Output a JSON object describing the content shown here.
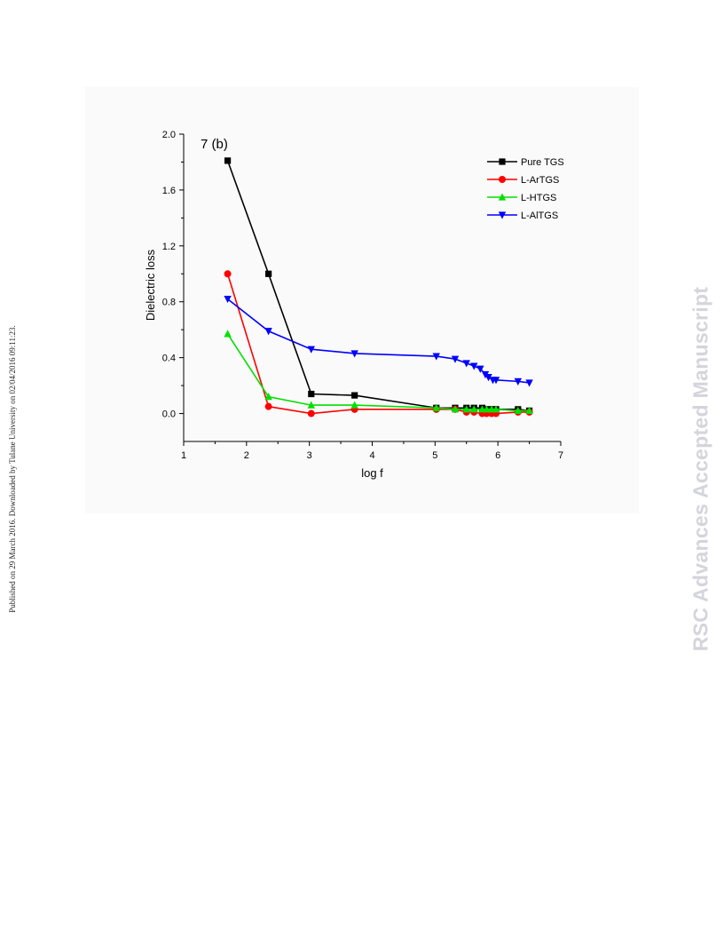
{
  "side_note": "Published on 29 March 2016. Downloaded by Tulane University on 02/04/2016 09:11:23.",
  "watermark": "RSC Advances Accepted Manuscript",
  "chart_data": {
    "type": "line",
    "annotation": "7 (b)",
    "xlabel": "log f",
    "ylabel": "Dielectric loss",
    "xlim": [
      1,
      7
    ],
    "ylim": [
      -0.2,
      2.0
    ],
    "xticks": [
      "1",
      "2",
      "3",
      "4",
      "5",
      "6",
      "7"
    ],
    "yticks": [
      "0.0",
      "0.4",
      "0.8",
      "1.2",
      "1.6",
      "2.0"
    ],
    "legend_position": "top-right",
    "grid": false,
    "series": [
      {
        "name": "Pure TGS",
        "color": "#000000",
        "marker": "square",
        "x": [
          1.7,
          2.35,
          3.03,
          3.72,
          5.02,
          5.32,
          5.5,
          5.62,
          5.75,
          5.82,
          5.9,
          5.97,
          6.32,
          6.5
        ],
        "y": [
          1.81,
          1.0,
          0.14,
          0.13,
          0.04,
          0.04,
          0.04,
          0.04,
          0.04,
          0.03,
          0.03,
          0.03,
          0.03,
          0.02
        ]
      },
      {
        "name": "L-ArTGS",
        "color": "#ff0000",
        "marker": "circle",
        "x": [
          1.7,
          2.35,
          3.03,
          3.72,
          5.02,
          5.32,
          5.5,
          5.62,
          5.75,
          5.82,
          5.9,
          5.97,
          6.32,
          6.5
        ],
        "y": [
          1.0,
          0.05,
          0.0,
          0.03,
          0.03,
          0.03,
          0.01,
          0.01,
          0.0,
          0.0,
          0.0,
          0.0,
          0.01,
          0.01
        ]
      },
      {
        "name": "L-HTGS",
        "color": "#00e000",
        "marker": "triangle-up",
        "x": [
          1.7,
          2.35,
          3.03,
          3.72,
          5.02,
          5.32,
          5.5,
          5.62,
          5.75,
          5.82,
          5.9,
          5.97,
          6.32,
          6.5
        ],
        "y": [
          0.57,
          0.12,
          0.06,
          0.06,
          0.04,
          0.03,
          0.03,
          0.03,
          0.03,
          0.03,
          0.03,
          0.03,
          0.02,
          0.02
        ]
      },
      {
        "name": "L-AlTGS",
        "color": "#0000ff",
        "marker": "triangle-down",
        "x": [
          1.7,
          2.35,
          3.03,
          3.72,
          5.02,
          5.32,
          5.5,
          5.62,
          5.72,
          5.8,
          5.85,
          5.92,
          5.97,
          6.32,
          6.5
        ],
        "y": [
          0.82,
          0.59,
          0.46,
          0.43,
          0.41,
          0.39,
          0.36,
          0.34,
          0.32,
          0.28,
          0.26,
          0.24,
          0.24,
          0.23,
          0.22
        ]
      }
    ]
  }
}
